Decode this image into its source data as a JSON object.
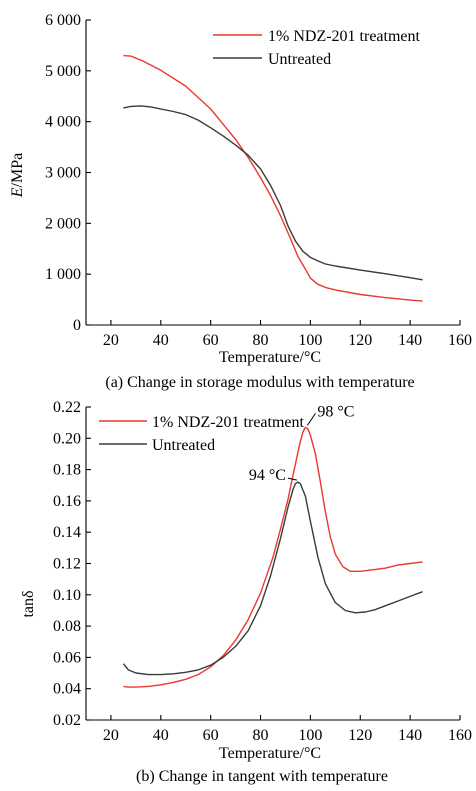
{
  "chart_data": [
    {
      "type": "line",
      "caption": "(a) Change in storage modulus with temperature",
      "xlabel": "Temperature/°C",
      "ylabel_italic": "E",
      "ylabel_rest": "/MPa",
      "xlim": [
        10,
        160
      ],
      "ylim": [
        0,
        6000
      ],
      "xticks": [
        20,
        40,
        60,
        80,
        100,
        120,
        140,
        160
      ],
      "xtick_labels": [
        "20",
        "40",
        "60",
        "80",
        "100",
        "120",
        "140",
        "160"
      ],
      "yticks": [
        0,
        1000,
        2000,
        3000,
        4000,
        5000,
        6000
      ],
      "ytick_labels": [
        "0",
        "1 000",
        "2 000",
        "3 000",
        "4 000",
        "5 000",
        "6 000"
      ],
      "legend_position": "top-right",
      "series": [
        {
          "name": "1% NDZ-201 treatment",
          "color": "#e8392f",
          "x": [
            25,
            28,
            30,
            33,
            40,
            50,
            60,
            65,
            70,
            75,
            80,
            84,
            88,
            92,
            95,
            98,
            100,
            103,
            106,
            110,
            120,
            130,
            140,
            145
          ],
          "y": [
            5300,
            5290,
            5250,
            5190,
            5010,
            4700,
            4250,
            3950,
            3650,
            3300,
            2900,
            2550,
            2150,
            1700,
            1350,
            1100,
            920,
            800,
            740,
            690,
            600,
            540,
            490,
            470
          ]
        },
        {
          "name": "Untreated",
          "color": "#3a3a3a",
          "x": [
            25,
            28,
            32,
            36,
            40,
            45,
            50,
            55,
            60,
            65,
            70,
            75,
            80,
            84,
            88,
            91,
            94,
            97,
            100,
            103,
            106,
            110,
            120,
            130,
            140,
            145
          ],
          "y": [
            4270,
            4300,
            4310,
            4290,
            4250,
            4200,
            4140,
            4030,
            3880,
            3720,
            3540,
            3340,
            3070,
            2750,
            2350,
            1950,
            1650,
            1450,
            1330,
            1260,
            1200,
            1160,
            1080,
            1010,
            930,
            890
          ]
        }
      ]
    },
    {
      "type": "line",
      "caption": "(b) Change in tangent with temperature",
      "xlabel": "Temperature/°C",
      "ylabel": "tanδ",
      "xlim": [
        10,
        160
      ],
      "ylim": [
        0.02,
        0.22
      ],
      "xticks": [
        20,
        40,
        60,
        80,
        100,
        120,
        140,
        160
      ],
      "xtick_labels": [
        "20",
        "40",
        "60",
        "80",
        "100",
        "120",
        "140",
        "160"
      ],
      "yticks": [
        0.02,
        0.04,
        0.06,
        0.08,
        0.1,
        0.12,
        0.14,
        0.16,
        0.18,
        0.2,
        0.22
      ],
      "ytick_labels": [
        "0.02",
        "0.04",
        "0.06",
        "0.08",
        "0.10",
        "0.12",
        "0.14",
        "0.16",
        "0.18",
        "0.20",
        "0.22"
      ],
      "legend_position": "top-left",
      "annotations": [
        {
          "text": "98 °C",
          "x": 98,
          "y": 0.207,
          "side": "right"
        },
        {
          "text": "94 °C",
          "x": 95,
          "y": 0.172,
          "side": "left"
        }
      ],
      "series": [
        {
          "name": "1% NDZ-201 treatment",
          "color": "#e8392f",
          "x": [
            25,
            27,
            30,
            35,
            40,
            45,
            50,
            55,
            60,
            65,
            70,
            75,
            80,
            85,
            88,
            91,
            93,
            95,
            96,
            97,
            98,
            99,
            100,
            102,
            104,
            106,
            108,
            110,
            113,
            116,
            120,
            125,
            130,
            135,
            140,
            145
          ],
          "y": [
            0.0415,
            0.041,
            0.041,
            0.0415,
            0.0425,
            0.044,
            0.046,
            0.049,
            0.054,
            0.061,
            0.071,
            0.084,
            0.101,
            0.124,
            0.142,
            0.161,
            0.176,
            0.191,
            0.198,
            0.204,
            0.207,
            0.206,
            0.202,
            0.19,
            0.172,
            0.153,
            0.137,
            0.126,
            0.118,
            0.115,
            0.115,
            0.116,
            0.117,
            0.119,
            0.12,
            0.121
          ]
        },
        {
          "name": "Untreated",
          "color": "#3a3a3a",
          "x": [
            25,
            27,
            30,
            35,
            40,
            45,
            50,
            55,
            60,
            65,
            70,
            75,
            80,
            84,
            88,
            91,
            93,
            94,
            95,
            96,
            98,
            100,
            103,
            106,
            110,
            114,
            118,
            122,
            126,
            130,
            135,
            140,
            145
          ],
          "y": [
            0.056,
            0.052,
            0.05,
            0.049,
            0.049,
            0.0495,
            0.0505,
            0.052,
            0.055,
            0.06,
            0.067,
            0.077,
            0.093,
            0.112,
            0.136,
            0.156,
            0.167,
            0.171,
            0.172,
            0.171,
            0.163,
            0.147,
            0.124,
            0.107,
            0.095,
            0.09,
            0.0885,
            0.089,
            0.0905,
            0.093,
            0.096,
            0.099,
            0.102
          ]
        }
      ]
    }
  ]
}
